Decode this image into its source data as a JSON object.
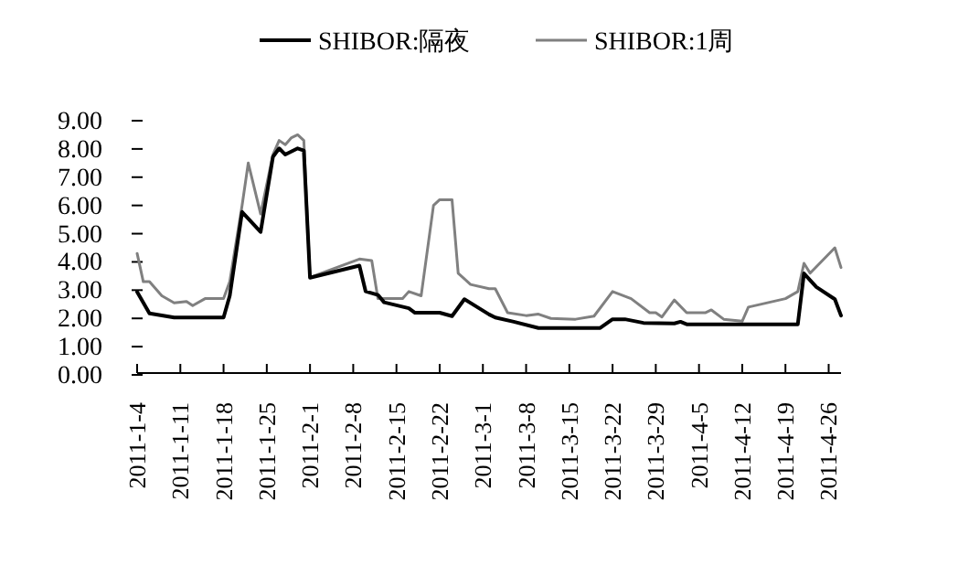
{
  "chart_data": {
    "type": "line",
    "series": [
      {
        "name": "SHIBOR:隔夜",
        "color": "#000000",
        "x": [
          "2011-01-04",
          "2011-01-06",
          "2011-01-10",
          "2011-01-18",
          "2011-01-19",
          "2011-01-21",
          "2011-01-24",
          "2011-01-26",
          "2011-01-27",
          "2011-01-28",
          "2011-01-30",
          "2011-01-31",
          "2011-02-01",
          "2011-02-09",
          "2011-02-10",
          "2011-02-12",
          "2011-02-13",
          "2011-02-17",
          "2011-02-18",
          "2011-02-22",
          "2011-02-24",
          "2011-02-26",
          "2011-03-02",
          "2011-03-03",
          "2011-03-06",
          "2011-03-10",
          "2011-03-20",
          "2011-03-22",
          "2011-03-24",
          "2011-03-27",
          "2011-04-01",
          "2011-04-02",
          "2011-04-03",
          "2011-04-21",
          "2011-04-22",
          "2011-04-24",
          "2011-04-27",
          "2011-04-28"
        ],
        "values": [
          2.94,
          2.18,
          2.03,
          2.03,
          2.8,
          5.77,
          5.06,
          7.72,
          8.02,
          7.8,
          8.02,
          7.94,
          3.44,
          3.87,
          2.96,
          2.83,
          2.57,
          2.36,
          2.2,
          2.2,
          2.08,
          2.68,
          2.14,
          2.03,
          1.88,
          1.66,
          1.66,
          1.97,
          1.97,
          1.84,
          1.82,
          1.88,
          1.79,
          1.79,
          3.59,
          3.11,
          2.68,
          2.1
        ]
      },
      {
        "name": "SHIBOR:1周",
        "color": "#808080",
        "x": [
          "2011-01-04",
          "2011-01-05",
          "2011-01-06",
          "2011-01-08",
          "2011-01-10",
          "2011-01-12",
          "2011-01-13",
          "2011-01-15",
          "2011-01-18",
          "2011-01-19",
          "2011-01-21",
          "2011-01-22",
          "2011-01-24",
          "2011-01-26",
          "2011-01-27",
          "2011-01-28",
          "2011-01-29",
          "2011-01-30",
          "2011-01-31",
          "2011-02-01",
          "2011-02-09",
          "2011-02-11",
          "2011-02-12",
          "2011-02-16",
          "2011-02-17",
          "2011-02-19",
          "2011-02-21",
          "2011-02-22",
          "2011-02-24",
          "2011-02-25",
          "2011-02-27",
          "2011-03-02",
          "2011-03-03",
          "2011-03-05",
          "2011-03-08",
          "2011-03-10",
          "2011-03-12",
          "2011-03-16",
          "2011-03-19",
          "2011-03-22",
          "2011-03-25",
          "2011-03-28",
          "2011-03-29",
          "2011-03-30",
          "2011-04-01",
          "2011-04-03",
          "2011-04-06",
          "2011-04-07",
          "2011-04-09",
          "2011-04-12",
          "2011-04-13",
          "2011-04-19",
          "2011-04-21",
          "2011-04-22",
          "2011-04-23",
          "2011-04-27",
          "2011-04-28"
        ],
        "values": [
          4.3,
          3.3,
          3.3,
          2.8,
          2.55,
          2.6,
          2.45,
          2.7,
          2.7,
          3.3,
          6.0,
          7.5,
          5.7,
          7.8,
          8.3,
          8.15,
          8.4,
          8.5,
          8.3,
          3.45,
          4.1,
          4.05,
          2.7,
          2.7,
          2.95,
          2.8,
          6.0,
          6.2,
          6.2,
          3.6,
          3.2,
          3.05,
          3.05,
          2.2,
          2.1,
          2.15,
          2.0,
          1.97,
          2.08,
          2.95,
          2.7,
          2.2,
          2.2,
          2.05,
          2.65,
          2.2,
          2.2,
          2.3,
          1.97,
          1.9,
          2.4,
          2.7,
          2.95,
          3.95,
          3.6,
          4.5,
          3.8
        ]
      }
    ],
    "xticks": [
      {
        "value": "2011-01-04",
        "label": "2011-1-4"
      },
      {
        "value": "2011-01-11",
        "label": "2011-1-11"
      },
      {
        "value": "2011-01-18",
        "label": "2011-1-18"
      },
      {
        "value": "2011-01-25",
        "label": "2011-1-25"
      },
      {
        "value": "2011-02-01",
        "label": "2011-2-1"
      },
      {
        "value": "2011-02-08",
        "label": "2011-2-8"
      },
      {
        "value": "2011-02-15",
        "label": "2011-2-15"
      },
      {
        "value": "2011-02-22",
        "label": "2011-2-22"
      },
      {
        "value": "2011-03-01",
        "label": "2011-3-1"
      },
      {
        "value": "2011-03-08",
        "label": "2011-3-8"
      },
      {
        "value": "2011-03-15",
        "label": "2011-3-15"
      },
      {
        "value": "2011-03-22",
        "label": "2011-3-22"
      },
      {
        "value": "2011-03-29",
        "label": "2011-3-29"
      },
      {
        "value": "2011-04-05",
        "label": "2011-4-5"
      },
      {
        "value": "2011-04-12",
        "label": "2011-4-12"
      },
      {
        "value": "2011-04-19",
        "label": "2011-4-19"
      },
      {
        "value": "2011-04-26",
        "label": "2011-4-26"
      }
    ],
    "xlim": [
      "2011-01-04",
      "2011-04-28"
    ],
    "ylim": [
      0,
      9
    ],
    "yticks": [
      {
        "value": 0,
        "label": "0.00"
      },
      {
        "value": 1,
        "label": "1.00"
      },
      {
        "value": 2,
        "label": "2.00"
      },
      {
        "value": 3,
        "label": "3.00"
      },
      {
        "value": 4,
        "label": "4.00"
      },
      {
        "value": 5,
        "label": "5.00"
      },
      {
        "value": 6,
        "label": "6.00"
      },
      {
        "value": 7,
        "label": "7.00"
      },
      {
        "value": 8,
        "label": "8.00"
      },
      {
        "value": 9,
        "label": "9.00"
      }
    ],
    "legend": "top"
  }
}
